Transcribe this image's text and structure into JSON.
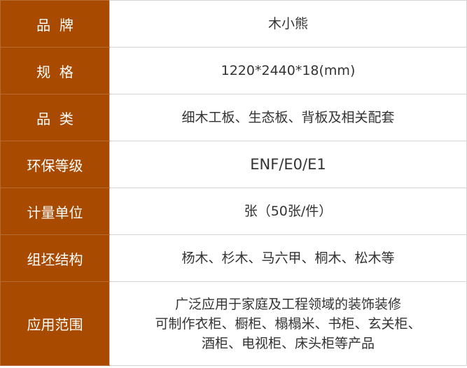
{
  "rows": [
    {
      "label": "品  牌",
      "value": "木小熊"
    },
    {
      "label": "规  格",
      "value": "1220*2440*18(mm)"
    },
    {
      "label": "品  类",
      "value": "细木工板、生态板、背板及相关配套"
    },
    {
      "label": "环保等级",
      "value": "ENF/E0/E1"
    },
    {
      "label": "计量单位",
      "value": "张（50张/件）"
    },
    {
      "label": "组坯结构",
      "value": "杨木、杉木、马六甲、桐木、松木等"
    },
    {
      "label": "应用范围",
      "lines": [
        "广泛应用于家庭及工程领域的装饰装修",
        "可制作衣柜、橱柜、榻榻米、书柜、玄关柜、",
        "酒柜、电视柜、床头柜等产品"
      ]
    }
  ],
  "colors": {
    "label_bg": "#a84b00",
    "label_text": "#ffffff",
    "value_text": "#333333",
    "border": "#d4d4d4"
  }
}
